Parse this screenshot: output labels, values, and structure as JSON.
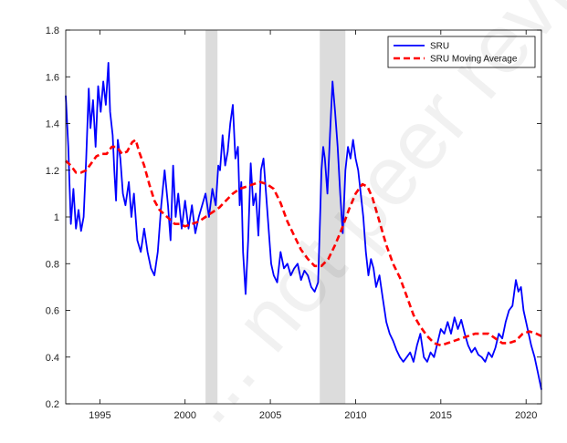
{
  "chart_data": {
    "type": "line",
    "title": "",
    "xlabel": "",
    "ylabel": "",
    "xlim": [
      1993.0,
      2020.9
    ],
    "ylim": [
      0.2,
      1.8
    ],
    "x_ticks": [
      {
        "value": 1995,
        "label": "1995"
      },
      {
        "value": 2000,
        "label": "2000"
      },
      {
        "value": 2005,
        "label": "2005"
      },
      {
        "value": 2010,
        "label": "2010"
      },
      {
        "value": 2015,
        "label": "2015"
      },
      {
        "value": 2020,
        "label": "2020"
      }
    ],
    "y_ticks": [
      {
        "value": 0.2,
        "label": "0.2"
      },
      {
        "value": 0.4,
        "label": "0.4"
      },
      {
        "value": 0.6,
        "label": "0.6"
      },
      {
        "value": 0.8,
        "label": "0.8"
      },
      {
        "value": 1.0,
        "label": "1"
      },
      {
        "value": 1.2,
        "label": "1.2"
      },
      {
        "value": 1.4,
        "label": "1.4"
      },
      {
        "value": 1.6,
        "label": "1.6"
      },
      {
        "value": 1.8,
        "label": "1.8"
      }
    ],
    "grid": false,
    "legend_position": "top-right",
    "shaded_periods": [
      {
        "start": 2001.2,
        "end": 2001.9
      },
      {
        "start": 2007.9,
        "end": 2009.4
      }
    ],
    "series": [
      {
        "name": "SRU",
        "color": "#0000ff",
        "style": "solid",
        "points": [
          [
            1993.0,
            1.52
          ],
          [
            1993.15,
            1.3
          ],
          [
            1993.3,
            0.97
          ],
          [
            1993.45,
            1.12
          ],
          [
            1993.6,
            0.95
          ],
          [
            1993.75,
            1.03
          ],
          [
            1993.9,
            0.94
          ],
          [
            1994.05,
            1.0
          ],
          [
            1994.2,
            1.25
          ],
          [
            1994.35,
            1.55
          ],
          [
            1994.45,
            1.38
          ],
          [
            1994.6,
            1.5
          ],
          [
            1994.75,
            1.3
          ],
          [
            1994.9,
            1.56
          ],
          [
            1995.05,
            1.45
          ],
          [
            1995.2,
            1.58
          ],
          [
            1995.35,
            1.48
          ],
          [
            1995.5,
            1.66
          ],
          [
            1995.6,
            1.45
          ],
          [
            1995.75,
            1.35
          ],
          [
            1995.85,
            1.2
          ],
          [
            1995.95,
            1.07
          ],
          [
            1996.05,
            1.33
          ],
          [
            1996.2,
            1.25
          ],
          [
            1996.35,
            1.1
          ],
          [
            1996.5,
            1.05
          ],
          [
            1996.7,
            1.15
          ],
          [
            1996.85,
            1.0
          ],
          [
            1997.0,
            1.1
          ],
          [
            1997.2,
            0.9
          ],
          [
            1997.4,
            0.85
          ],
          [
            1997.6,
            0.95
          ],
          [
            1997.8,
            0.85
          ],
          [
            1998.0,
            0.78
          ],
          [
            1998.2,
            0.75
          ],
          [
            1998.4,
            0.85
          ],
          [
            1998.6,
            1.05
          ],
          [
            1998.8,
            1.2
          ],
          [
            1999.0,
            1.05
          ],
          [
            1999.15,
            0.9
          ],
          [
            1999.3,
            1.22
          ],
          [
            1999.45,
            1.0
          ],
          [
            1999.6,
            1.1
          ],
          [
            1999.8,
            0.95
          ],
          [
            2000.0,
            1.07
          ],
          [
            2000.2,
            0.95
          ],
          [
            2000.4,
            1.05
          ],
          [
            2000.6,
            0.93
          ],
          [
            2000.8,
            1.0
          ],
          [
            2001.0,
            1.05
          ],
          [
            2001.2,
            1.1
          ],
          [
            2001.4,
            1.0
          ],
          [
            2001.6,
            1.12
          ],
          [
            2001.8,
            1.05
          ],
          [
            2001.95,
            1.22
          ],
          [
            2002.05,
            1.2
          ],
          [
            2002.2,
            1.35
          ],
          [
            2002.35,
            1.22
          ],
          [
            2002.5,
            1.28
          ],
          [
            2002.65,
            1.4
          ],
          [
            2002.8,
            1.48
          ],
          [
            2002.95,
            1.25
          ],
          [
            2003.1,
            1.3
          ],
          [
            2003.2,
            1.05
          ],
          [
            2003.3,
            1.15
          ],
          [
            2003.4,
            0.85
          ],
          [
            2003.55,
            0.67
          ],
          [
            2003.7,
            0.9
          ],
          [
            2003.85,
            1.23
          ],
          [
            2004.0,
            1.05
          ],
          [
            2004.15,
            1.1
          ],
          [
            2004.3,
            0.92
          ],
          [
            2004.45,
            1.2
          ],
          [
            2004.6,
            1.25
          ],
          [
            2004.75,
            1.1
          ],
          [
            2004.9,
            0.95
          ],
          [
            2005.05,
            0.8
          ],
          [
            2005.2,
            0.75
          ],
          [
            2005.4,
            0.72
          ],
          [
            2005.6,
            0.85
          ],
          [
            2005.8,
            0.78
          ],
          [
            2006.0,
            0.8
          ],
          [
            2006.2,
            0.75
          ],
          [
            2006.4,
            0.78
          ],
          [
            2006.6,
            0.8
          ],
          [
            2006.8,
            0.73
          ],
          [
            2007.0,
            0.77
          ],
          [
            2007.2,
            0.75
          ],
          [
            2007.4,
            0.7
          ],
          [
            2007.6,
            0.68
          ],
          [
            2007.8,
            0.72
          ],
          [
            2007.9,
            0.95
          ],
          [
            2008.0,
            1.2
          ],
          [
            2008.1,
            1.3
          ],
          [
            2008.2,
            1.25
          ],
          [
            2008.35,
            1.1
          ],
          [
            2008.5,
            1.35
          ],
          [
            2008.65,
            1.58
          ],
          [
            2008.8,
            1.45
          ],
          [
            2008.95,
            1.3
          ],
          [
            2009.1,
            1.1
          ],
          [
            2009.25,
            0.93
          ],
          [
            2009.4,
            1.2
          ],
          [
            2009.55,
            1.3
          ],
          [
            2009.7,
            1.25
          ],
          [
            2009.85,
            1.33
          ],
          [
            2010.0,
            1.25
          ],
          [
            2010.15,
            1.2
          ],
          [
            2010.3,
            1.1
          ],
          [
            2010.45,
            1.0
          ],
          [
            2010.6,
            0.85
          ],
          [
            2010.75,
            0.75
          ],
          [
            2010.9,
            0.82
          ],
          [
            2011.05,
            0.78
          ],
          [
            2011.2,
            0.7
          ],
          [
            2011.4,
            0.75
          ],
          [
            2011.6,
            0.65
          ],
          [
            2011.8,
            0.55
          ],
          [
            2012.0,
            0.5
          ],
          [
            2012.2,
            0.47
          ],
          [
            2012.4,
            0.43
          ],
          [
            2012.6,
            0.4
          ],
          [
            2012.8,
            0.38
          ],
          [
            2013.0,
            0.4
          ],
          [
            2013.2,
            0.42
          ],
          [
            2013.4,
            0.38
          ],
          [
            2013.6,
            0.45
          ],
          [
            2013.8,
            0.5
          ],
          [
            2014.0,
            0.4
          ],
          [
            2014.2,
            0.38
          ],
          [
            2014.4,
            0.42
          ],
          [
            2014.6,
            0.4
          ],
          [
            2014.8,
            0.46
          ],
          [
            2015.0,
            0.52
          ],
          [
            2015.2,
            0.5
          ],
          [
            2015.4,
            0.55
          ],
          [
            2015.6,
            0.5
          ],
          [
            2015.8,
            0.57
          ],
          [
            2016.0,
            0.52
          ],
          [
            2016.2,
            0.56
          ],
          [
            2016.4,
            0.5
          ],
          [
            2016.6,
            0.45
          ],
          [
            2016.8,
            0.42
          ],
          [
            2017.0,
            0.44
          ],
          [
            2017.2,
            0.41
          ],
          [
            2017.4,
            0.4
          ],
          [
            2017.6,
            0.38
          ],
          [
            2017.8,
            0.42
          ],
          [
            2018.0,
            0.4
          ],
          [
            2018.2,
            0.44
          ],
          [
            2018.4,
            0.5
          ],
          [
            2018.6,
            0.48
          ],
          [
            2018.8,
            0.55
          ],
          [
            2019.0,
            0.6
          ],
          [
            2019.2,
            0.62
          ],
          [
            2019.4,
            0.73
          ],
          [
            2019.55,
            0.68
          ],
          [
            2019.7,
            0.7
          ],
          [
            2019.85,
            0.6
          ],
          [
            2020.0,
            0.55
          ],
          [
            2020.15,
            0.5
          ],
          [
            2020.3,
            0.45
          ],
          [
            2020.5,
            0.4
          ],
          [
            2020.7,
            0.33
          ],
          [
            2020.9,
            0.26
          ]
        ]
      },
      {
        "name": "SRU Moving Average",
        "color": "#ff0000",
        "style": "dashed",
        "points": [
          [
            1993.0,
            1.24
          ],
          [
            1993.3,
            1.22
          ],
          [
            1993.6,
            1.19
          ],
          [
            1993.9,
            1.19
          ],
          [
            1994.2,
            1.2
          ],
          [
            1994.5,
            1.23
          ],
          [
            1994.8,
            1.26
          ],
          [
            1995.1,
            1.27
          ],
          [
            1995.4,
            1.27
          ],
          [
            1995.7,
            1.3
          ],
          [
            1996.0,
            1.3
          ],
          [
            1996.3,
            1.27
          ],
          [
            1996.6,
            1.28
          ],
          [
            1996.9,
            1.32
          ],
          [
            1997.1,
            1.33
          ],
          [
            1997.3,
            1.28
          ],
          [
            1997.6,
            1.22
          ],
          [
            1997.9,
            1.14
          ],
          [
            1998.2,
            1.07
          ],
          [
            1998.5,
            1.03
          ],
          [
            1998.8,
            1.01
          ],
          [
            1999.1,
            0.99
          ],
          [
            1999.4,
            0.97
          ],
          [
            1999.7,
            0.97
          ],
          [
            2000.0,
            0.96
          ],
          [
            2000.4,
            0.97
          ],
          [
            2000.8,
            0.98
          ],
          [
            2001.2,
            1.0
          ],
          [
            2001.6,
            1.02
          ],
          [
            2002.0,
            1.04
          ],
          [
            2002.4,
            1.07
          ],
          [
            2002.8,
            1.1
          ],
          [
            2003.2,
            1.12
          ],
          [
            2003.6,
            1.13
          ],
          [
            2004.0,
            1.14
          ],
          [
            2004.4,
            1.15
          ],
          [
            2004.8,
            1.14
          ],
          [
            2005.2,
            1.12
          ],
          [
            2005.6,
            1.06
          ],
          [
            2006.0,
            0.98
          ],
          [
            2006.4,
            0.92
          ],
          [
            2006.8,
            0.86
          ],
          [
            2007.2,
            0.82
          ],
          [
            2007.6,
            0.79
          ],
          [
            2008.0,
            0.79
          ],
          [
            2008.4,
            0.82
          ],
          [
            2008.8,
            0.88
          ],
          [
            2009.2,
            0.95
          ],
          [
            2009.6,
            1.03
          ],
          [
            2010.0,
            1.1
          ],
          [
            2010.4,
            1.14
          ],
          [
            2010.7,
            1.13
          ],
          [
            2011.0,
            1.08
          ],
          [
            2011.4,
            0.98
          ],
          [
            2011.8,
            0.88
          ],
          [
            2012.2,
            0.8
          ],
          [
            2012.6,
            0.74
          ],
          [
            2013.0,
            0.66
          ],
          [
            2013.4,
            0.58
          ],
          [
            2013.8,
            0.53
          ],
          [
            2014.2,
            0.49
          ],
          [
            2014.6,
            0.46
          ],
          [
            2015.0,
            0.45
          ],
          [
            2015.4,
            0.46
          ],
          [
            2015.8,
            0.47
          ],
          [
            2016.2,
            0.48
          ],
          [
            2016.6,
            0.49
          ],
          [
            2017.0,
            0.5
          ],
          [
            2017.4,
            0.5
          ],
          [
            2017.8,
            0.5
          ],
          [
            2018.2,
            0.48
          ],
          [
            2018.6,
            0.46
          ],
          [
            2019.0,
            0.46
          ],
          [
            2019.4,
            0.47
          ],
          [
            2019.8,
            0.5
          ],
          [
            2020.2,
            0.51
          ],
          [
            2020.6,
            0.5
          ],
          [
            2020.9,
            0.49
          ]
        ]
      }
    ]
  },
  "watermark": {
    "text": "... not peer reviewed"
  }
}
